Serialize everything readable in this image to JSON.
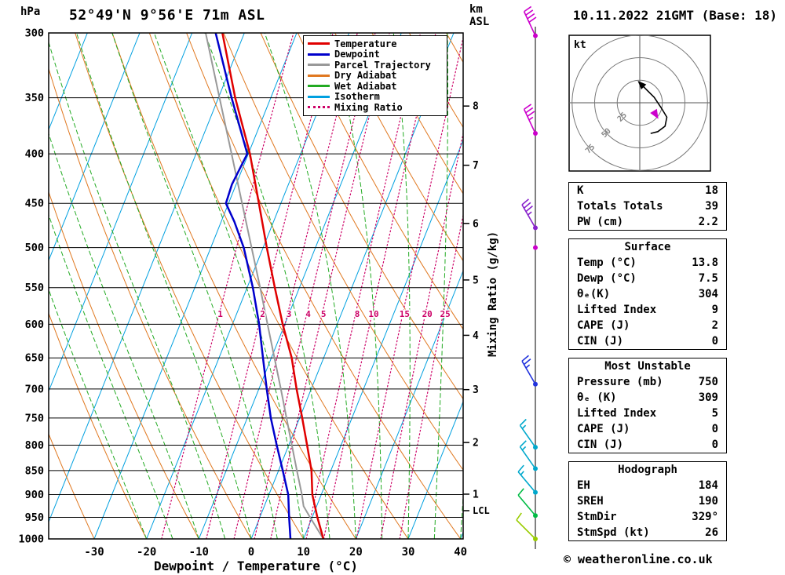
{
  "title": "52°49'N 9°56'E 71m ASL",
  "datetime": "10.11.2022 21GMT (Base: 18)",
  "copyright": "© weatheronline.co.uk",
  "axes": {
    "pressure_label": "hPa",
    "km_label_lines": [
      "km",
      "ASL"
    ],
    "mixing_ratio_axis_label": "Mixing Ratio (g/kg)",
    "x_axis_label": "Dewpoint / Temperature (°C)",
    "pressure_ticks": [
      300,
      350,
      400,
      450,
      500,
      550,
      600,
      650,
      700,
      750,
      800,
      850,
      900,
      950,
      1000
    ],
    "temp_ticks": [
      -30,
      -20,
      -10,
      0,
      10,
      20,
      30,
      40
    ],
    "lcl_label": "LCL"
  },
  "colors": {
    "temperature": "#e00000",
    "dewpoint": "#0000cc",
    "parcel": "#999999",
    "dry_adiabat": "#e07820",
    "wet_adiabat": "#22aa22",
    "isotherm": "#00a0e0",
    "mixing_ratio": "#cc0066"
  },
  "legend": [
    {
      "label": "Temperature",
      "key": "temperature",
      "style": "solid"
    },
    {
      "label": "Dewpoint",
      "key": "dewpoint",
      "style": "solid"
    },
    {
      "label": "Parcel Trajectory",
      "key": "parcel",
      "style": "solid"
    },
    {
      "label": "Dry Adiabat",
      "key": "dry_adiabat",
      "style": "solid"
    },
    {
      "label": "Wet Adiabat",
      "key": "wet_adiabat",
      "style": "solid"
    },
    {
      "label": "Isotherm",
      "key": "isotherm",
      "style": "solid"
    },
    {
      "label": "Mixing Ratio",
      "key": "mixing_ratio",
      "style": "dotted"
    }
  ],
  "chart_data": {
    "type": "skewt_log_p_sounding",
    "pressure_hpa_range": [
      300,
      1000
    ],
    "temp_axis_c_range": [
      -40,
      40
    ],
    "isobar_step_hpa": 50,
    "temperature_profile_c": [
      [
        1000,
        13.8
      ],
      [
        950,
        11.0
      ],
      [
        900,
        8.3
      ],
      [
        850,
        6.3
      ],
      [
        800,
        3.5
      ],
      [
        750,
        0.5
      ],
      [
        700,
        -2.8
      ],
      [
        650,
        -6.1
      ],
      [
        600,
        -10.4
      ],
      [
        550,
        -14.7
      ],
      [
        500,
        -19.3
      ],
      [
        450,
        -24.2
      ],
      [
        400,
        -29.7
      ],
      [
        350,
        -36.8
      ],
      [
        300,
        -44.2
      ]
    ],
    "dewpoint_profile_c": [
      [
        1000,
        7.5
      ],
      [
        950,
        5.6
      ],
      [
        900,
        3.7
      ],
      [
        850,
        0.8
      ],
      [
        800,
        -2.3
      ],
      [
        750,
        -5.5
      ],
      [
        700,
        -8.5
      ],
      [
        650,
        -11.6
      ],
      [
        600,
        -14.9
      ],
      [
        550,
        -18.9
      ],
      [
        500,
        -23.7
      ],
      [
        470,
        -27.5
      ],
      [
        450,
        -30.5
      ],
      [
        430,
        -30.8
      ],
      [
        400,
        -30.2
      ],
      [
        350,
        -37.5
      ],
      [
        300,
        -45.5
      ]
    ],
    "parcel_profile_c": [
      [
        1000,
        13.8
      ],
      [
        950,
        9.6
      ],
      [
        925,
        7.5
      ],
      [
        900,
        6.3
      ],
      [
        850,
        3.5
      ],
      [
        800,
        0.6
      ],
      [
        750,
        -2.5
      ],
      [
        700,
        -5.8
      ],
      [
        650,
        -9.4
      ],
      [
        600,
        -13.3
      ],
      [
        550,
        -17.5
      ],
      [
        500,
        -22.2
      ],
      [
        450,
        -27.4
      ],
      [
        400,
        -33.2
      ],
      [
        350,
        -39.8
      ],
      [
        300,
        -47.4
      ]
    ],
    "mixing_ratio_lines_gkg": [
      1,
      2,
      3,
      4,
      5,
      8,
      10,
      15,
      20,
      25
    ],
    "km_ticks": [
      {
        "km": 8,
        "hpa": 357
      },
      {
        "km": 7,
        "hpa": 411
      },
      {
        "km": 6,
        "hpa": 472
      },
      {
        "km": 5,
        "hpa": 540
      },
      {
        "km": 4,
        "hpa": 616
      },
      {
        "km": 3,
        "hpa": 701
      },
      {
        "km": 2,
        "hpa": 795
      },
      {
        "km": 1,
        "hpa": 899
      }
    ],
    "lcl_hpa": 935,
    "wind_barbs": [
      {
        "hpa": 302,
        "speed_kt": 40,
        "dir_deg": 335,
        "color": "#cc00cc"
      },
      {
        "hpa": 381,
        "speed_kt": 35,
        "dir_deg": 335,
        "color": "#cc00cc"
      },
      {
        "hpa": 477,
        "speed_kt": 35,
        "dir_deg": 330,
        "color": "#8822cc"
      },
      {
        "hpa": 500,
        "speed_kt": 0,
        "dir_deg": 330,
        "color": "#cc00cc"
      },
      {
        "hpa": 692,
        "speed_kt": 25,
        "dir_deg": 330,
        "color": "#2233dd"
      },
      {
        "hpa": 804,
        "speed_kt": 15,
        "dir_deg": 325,
        "color": "#00a8cc"
      },
      {
        "hpa": 846,
        "speed_kt": 15,
        "dir_deg": 325,
        "color": "#00a8cc"
      },
      {
        "hpa": 895,
        "speed_kt": 15,
        "dir_deg": 320,
        "color": "#00a8cc"
      },
      {
        "hpa": 946,
        "speed_kt": 10,
        "dir_deg": 320,
        "color": "#00bb44"
      },
      {
        "hpa": 1000,
        "speed_kt": 10,
        "dir_deg": 315,
        "color": "#99cc00"
      }
    ],
    "hodograph": {
      "unit_label": "kt",
      "rings_kt": [
        25,
        50,
        75
      ],
      "trace_uv_kt": [
        [
          2,
          20
        ],
        [
          8,
          14
        ],
        [
          16,
          6
        ],
        [
          24,
          -6
        ],
        [
          30,
          -16
        ],
        [
          28,
          -26
        ],
        [
          20,
          -32
        ],
        [
          12,
          -34
        ]
      ],
      "storm_marker_uv_kt": [
        17,
        -12
      ]
    }
  },
  "stats": {
    "indices": {
      "rows": [
        [
          "K",
          "18"
        ],
        [
          "Totals Totals",
          "39"
        ],
        [
          "PW (cm)",
          "2.2"
        ]
      ]
    },
    "surface": {
      "title": "Surface",
      "rows": [
        [
          "Temp (°C)",
          "13.8"
        ],
        [
          "Dewp (°C)",
          "7.5"
        ],
        [
          "θₑ(K)",
          "304"
        ],
        [
          "Lifted Index",
          "9"
        ],
        [
          "CAPE (J)",
          "2"
        ],
        [
          "CIN (J)",
          "0"
        ]
      ]
    },
    "most_unstable": {
      "title": "Most Unstable",
      "rows": [
        [
          "Pressure (mb)",
          "750"
        ],
        [
          "θₑ (K)",
          "309"
        ],
        [
          "Lifted Index",
          "5"
        ],
        [
          "CAPE (J)",
          "0"
        ],
        [
          "CIN (J)",
          "0"
        ]
      ]
    },
    "hodograph_stats": {
      "title": "Hodograph",
      "rows": [
        [
          "EH",
          "184"
        ],
        [
          "SREH",
          "190"
        ],
        [
          "StmDir",
          "329°"
        ],
        [
          "StmSpd (kt)",
          "26"
        ]
      ]
    }
  }
}
